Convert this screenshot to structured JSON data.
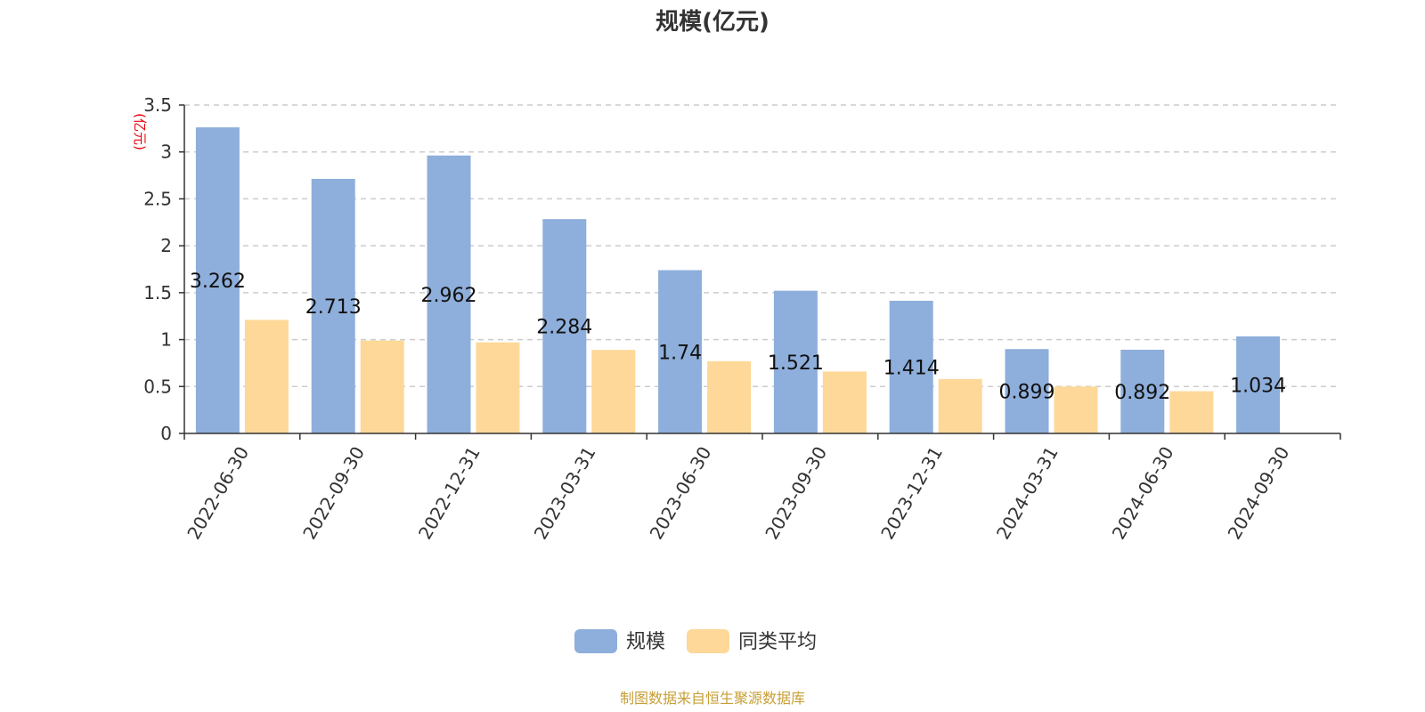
{
  "chart_data": {
    "type": "bar",
    "title": "规模(亿元)",
    "ylabel": "(亿元)",
    "categories": [
      "2022-06-30",
      "2022-09-30",
      "2022-12-31",
      "2023-03-31",
      "2023-06-30",
      "2023-09-30",
      "2023-12-31",
      "2024-03-31",
      "2024-06-30",
      "2024-09-30"
    ],
    "series": [
      {
        "name": "规模",
        "color": "#8eaedb",
        "values": [
          3.262,
          2.713,
          2.962,
          2.284,
          1.74,
          1.521,
          1.414,
          0.899,
          0.892,
          1.034
        ],
        "labels": [
          "3.262",
          "2.713",
          "2.962",
          "2.284",
          "1.74",
          "1.521",
          "1.414",
          "0.899",
          "0.892",
          "1.034"
        ]
      },
      {
        "name": "同类平均",
        "color": "#fdd898",
        "values": [
          1.21,
          0.99,
          0.97,
          0.89,
          0.77,
          0.66,
          0.58,
          0.5,
          0.45,
          null
        ]
      }
    ],
    "ylim": [
      0,
      3.5
    ],
    "yticks": [
      "0",
      "0.5",
      "1",
      "1.5",
      "2",
      "2.5",
      "3",
      "3.5"
    ],
    "grid": true,
    "legend_position": "bottom-center"
  },
  "colors": {
    "unit_label": "#e8000b",
    "source": "#c79f36",
    "grid": "#cccccc",
    "axis": "#333333"
  },
  "source_text": "制图数据来自恒生聚源数据库"
}
